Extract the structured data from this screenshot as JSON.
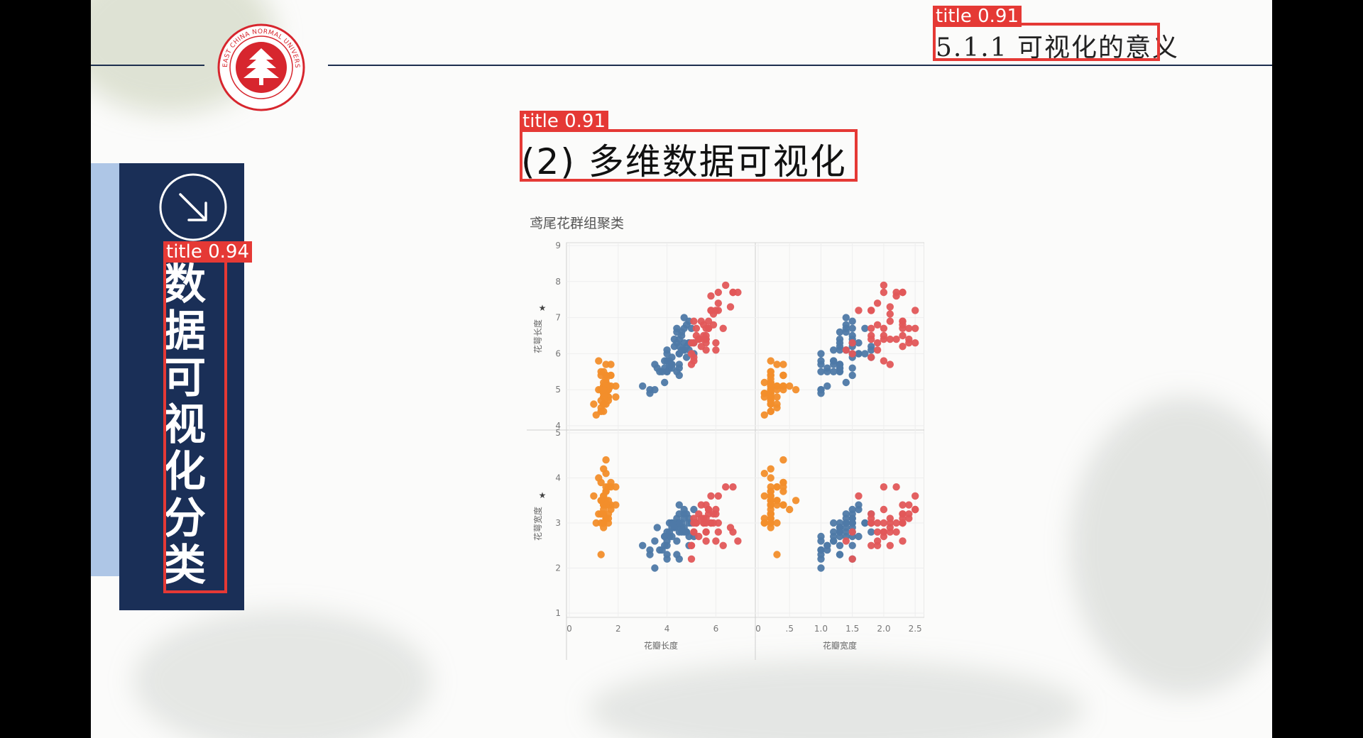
{
  "header": {
    "section_title": "5.1.1 可视化的意义",
    "logo": {
      "text": "EAST CHINA NORMAL UNIVERSITY",
      "color": "#d7262e"
    }
  },
  "sidebar": {
    "title_chars": [
      "数",
      "据",
      "可",
      "视",
      "化",
      "分",
      "类"
    ],
    "panel_color": "#1a2f57",
    "accent_color": "#aec6e6"
  },
  "main": {
    "title": "(2) 多维数据可视化"
  },
  "detections": [
    {
      "label": "title 0.91"
    },
    {
      "label": "title 0.91"
    },
    {
      "label": "title 0.94"
    }
  ],
  "chart_data": {
    "type": "scatter",
    "title": "鸢尾花群组聚类",
    "layout": "2x2 scatter matrix",
    "row_labels": [
      "花萼长度",
      "花萼宽度"
    ],
    "col_labels": [
      "花瓣长度",
      "花瓣宽度"
    ],
    "row_ylims": [
      [
        4,
        9
      ],
      [
        1,
        5
      ]
    ],
    "row_yticks": [
      [
        4,
        5,
        6,
        7,
        8,
        9
      ],
      [
        1,
        2,
        3,
        4,
        5
      ]
    ],
    "col_xlims": [
      [
        0,
        7.5
      ],
      [
        0,
        2.6
      ]
    ],
    "col_xticks": [
      [
        0,
        2,
        4,
        6
      ],
      [
        0,
        0.5,
        1.0,
        1.5,
        2.0,
        2.5
      ]
    ],
    "col_xtick_labels": [
      [
        "0",
        "2",
        "4",
        "6"
      ],
      [
        "0",
        ".5",
        "1.0",
        "1.5",
        "2.0",
        "2.5"
      ]
    ],
    "grid": true,
    "series": [
      {
        "color": "#f28e2b",
        "petal_length": [
          1.4,
          1.4,
          1.3,
          1.5,
          1.4,
          1.7,
          1.4,
          1.5,
          1.4,
          1.5,
          1.5,
          1.6,
          1.4,
          1.1,
          1.2,
          1.5,
          1.3,
          1.4,
          1.7,
          1.5,
          1.7,
          1.5,
          1.0,
          1.7,
          1.9,
          1.6,
          1.6,
          1.5,
          1.4,
          1.6,
          1.6,
          1.5,
          1.5,
          1.4,
          1.5,
          1.2,
          1.3,
          1.4,
          1.3,
          1.5,
          1.3,
          1.3,
          1.3,
          1.6,
          1.9,
          1.4,
          1.6,
          1.4,
          1.5,
          1.4
        ],
        "petal_width": [
          0.2,
          0.2,
          0.2,
          0.2,
          0.2,
          0.4,
          0.3,
          0.2,
          0.2,
          0.1,
          0.2,
          0.2,
          0.1,
          0.1,
          0.2,
          0.4,
          0.4,
          0.3,
          0.3,
          0.3,
          0.2,
          0.4,
          0.2,
          0.5,
          0.2,
          0.2,
          0.4,
          0.2,
          0.2,
          0.2,
          0.2,
          0.4,
          0.1,
          0.2,
          0.2,
          0.2,
          0.2,
          0.1,
          0.2,
          0.2,
          0.3,
          0.3,
          0.2,
          0.6,
          0.4,
          0.3,
          0.2,
          0.2,
          0.2,
          0.2
        ],
        "sepal_length": [
          5.1,
          4.9,
          4.7,
          4.6,
          5.0,
          5.4,
          4.6,
          5.0,
          4.4,
          4.9,
          5.4,
          4.8,
          4.8,
          4.3,
          5.8,
          5.7,
          5.4,
          5.1,
          5.7,
          5.1,
          5.4,
          5.1,
          4.6,
          5.1,
          4.8,
          5.0,
          5.0,
          5.2,
          5.2,
          4.7,
          4.8,
          5.4,
          5.2,
          5.5,
          4.9,
          5.0,
          5.5,
          4.9,
          4.4,
          5.1,
          5.0,
          4.5,
          4.4,
          5.0,
          5.1,
          4.8,
          5.1,
          4.6,
          5.3,
          5.0
        ],
        "sepal_width": [
          3.5,
          3.0,
          3.2,
          3.1,
          3.6,
          3.9,
          3.4,
          3.4,
          2.9,
          3.1,
          3.7,
          3.4,
          3.0,
          3.0,
          4.0,
          4.4,
          3.9,
          3.5,
          3.8,
          3.8,
          3.4,
          3.7,
          3.6,
          3.3,
          3.4,
          3.0,
          3.4,
          3.5,
          3.4,
          3.2,
          3.1,
          3.4,
          4.1,
          4.2,
          3.1,
          3.2,
          3.5,
          3.6,
          3.0,
          3.4,
          3.5,
          2.3,
          3.2,
          3.5,
          3.8,
          3.0,
          3.8,
          3.2,
          3.7,
          3.3
        ]
      },
      {
        "color": "#4e79a7",
        "petal_length": [
          4.7,
          4.5,
          4.9,
          4.0,
          4.6,
          4.5,
          4.7,
          3.3,
          4.6,
          3.9,
          3.5,
          4.2,
          4.0,
          4.7,
          3.6,
          4.4,
          4.5,
          4.1,
          4.5,
          3.9,
          4.8,
          4.0,
          4.9,
          4.7,
          4.3,
          4.4,
          4.8,
          5.0,
          4.5,
          3.5,
          3.8,
          3.7,
          3.9,
          5.1,
          4.5,
          4.5,
          4.7,
          4.4,
          4.1,
          4.0,
          4.4,
          4.6,
          4.0,
          3.3,
          4.2,
          4.2,
          4.2,
          4.3,
          3.0,
          4.1,
          5.1,
          4.9,
          4.5,
          4.8,
          4.9
        ],
        "petal_width": [
          1.4,
          1.5,
          1.5,
          1.3,
          1.5,
          1.3,
          1.6,
          1.0,
          1.3,
          1.4,
          1.0,
          1.5,
          1.0,
          1.4,
          1.3,
          1.4,
          1.5,
          1.0,
          1.5,
          1.1,
          1.8,
          1.3,
          1.5,
          1.2,
          1.3,
          1.4,
          1.4,
          1.7,
          1.5,
          1.0,
          1.1,
          1.0,
          1.2,
          1.6,
          1.5,
          1.6,
          1.5,
          1.3,
          1.3,
          1.3,
          1.2,
          1.4,
          1.2,
          1.0,
          1.3,
          1.2,
          1.3,
          1.3,
          1.1,
          1.3,
          1.5,
          1.5,
          1.7,
          1.8,
          1.8
        ],
        "sepal_length": [
          7.0,
          6.4,
          6.9,
          5.5,
          6.5,
          5.7,
          6.3,
          4.9,
          6.6,
          5.2,
          5.0,
          5.9,
          6.0,
          6.1,
          5.6,
          6.7,
          5.6,
          5.8,
          6.2,
          5.6,
          5.9,
          6.1,
          6.3,
          6.1,
          6.4,
          6.6,
          6.8,
          6.7,
          6.0,
          5.7,
          5.5,
          5.5,
          5.8,
          6.0,
          5.4,
          6.0,
          6.7,
          6.3,
          5.6,
          5.5,
          5.5,
          6.1,
          5.8,
          5.0,
          5.6,
          5.7,
          5.7,
          6.2,
          5.1,
          5.7,
          6.3,
          6.3,
          6.0,
          6.2,
          6.1
        ],
        "sepal_width": [
          3.2,
          3.2,
          3.1,
          2.3,
          2.8,
          2.8,
          3.3,
          2.4,
          2.9,
          2.7,
          2.0,
          3.0,
          2.2,
          2.9,
          2.9,
          3.1,
          3.0,
          2.7,
          2.2,
          2.5,
          3.2,
          2.8,
          2.5,
          2.8,
          2.9,
          3.0,
          2.8,
          3.0,
          2.9,
          2.6,
          2.4,
          2.4,
          2.7,
          2.7,
          3.0,
          3.4,
          3.1,
          2.3,
          3.0,
          2.5,
          2.6,
          3.0,
          2.6,
          2.3,
          2.7,
          3.0,
          2.9,
          2.9,
          2.5,
          2.8,
          3.3,
          2.7,
          3.0,
          2.8,
          3.0
        ]
      },
      {
        "color": "#e15759",
        "petal_length": [
          6.0,
          5.9,
          5.6,
          5.8,
          6.6,
          6.3,
          6.1,
          5.3,
          5.5,
          5.0,
          5.1,
          5.3,
          5.5,
          6.7,
          6.9,
          5.0,
          5.7,
          6.7,
          5.7,
          6.0,
          5.6,
          5.8,
          6.1,
          6.4,
          5.6,
          5.1,
          5.6,
          6.1,
          5.6,
          5.5,
          5.4,
          5.6,
          5.1,
          5.9,
          5.7,
          5.2,
          5.0,
          5.2,
          5.4,
          5.1,
          5.8,
          6.0
        ],
        "petal_width": [
          2.5,
          2.1,
          1.8,
          2.2,
          2.1,
          1.8,
          2.5,
          2.0,
          1.9,
          2.1,
          2.0,
          2.4,
          2.3,
          2.2,
          2.3,
          1.5,
          2.3,
          2.0,
          2.0,
          1.8,
          2.1,
          1.8,
          1.9,
          2.0,
          2.2,
          1.5,
          1.4,
          2.3,
          2.4,
          1.8,
          2.1,
          2.4,
          2.3,
          2.3,
          2.5,
          2.3,
          1.9,
          2.0,
          2.3,
          1.8,
          1.6,
          1.9
        ],
        "sepal_length": [
          6.3,
          7.1,
          6.5,
          7.6,
          7.3,
          6.7,
          7.2,
          6.4,
          6.8,
          5.7,
          5.8,
          6.4,
          6.5,
          7.7,
          7.7,
          6.0,
          6.9,
          7.7,
          6.7,
          7.2,
          6.4,
          7.2,
          7.4,
          7.9,
          6.4,
          6.3,
          6.1,
          7.7,
          6.3,
          6.4,
          6.9,
          6.7,
          6.9,
          6.8,
          6.7,
          6.7,
          6.3,
          6.5,
          6.2,
          5.9,
          7.2,
          6.1
        ],
        "sepal_width": [
          3.3,
          3.0,
          3.0,
          3.0,
          2.9,
          2.5,
          3.6,
          2.7,
          3.0,
          2.5,
          2.8,
          3.2,
          3.0,
          3.8,
          2.6,
          2.2,
          3.2,
          2.8,
          3.3,
          3.2,
          2.8,
          3.0,
          2.8,
          3.8,
          2.8,
          2.8,
          2.6,
          3.0,
          3.4,
          3.1,
          3.1,
          3.1,
          3.1,
          3.2,
          3.3,
          3.0,
          2.5,
          3.0,
          3.4,
          3.0,
          3.6,
          2.6
        ]
      }
    ]
  }
}
